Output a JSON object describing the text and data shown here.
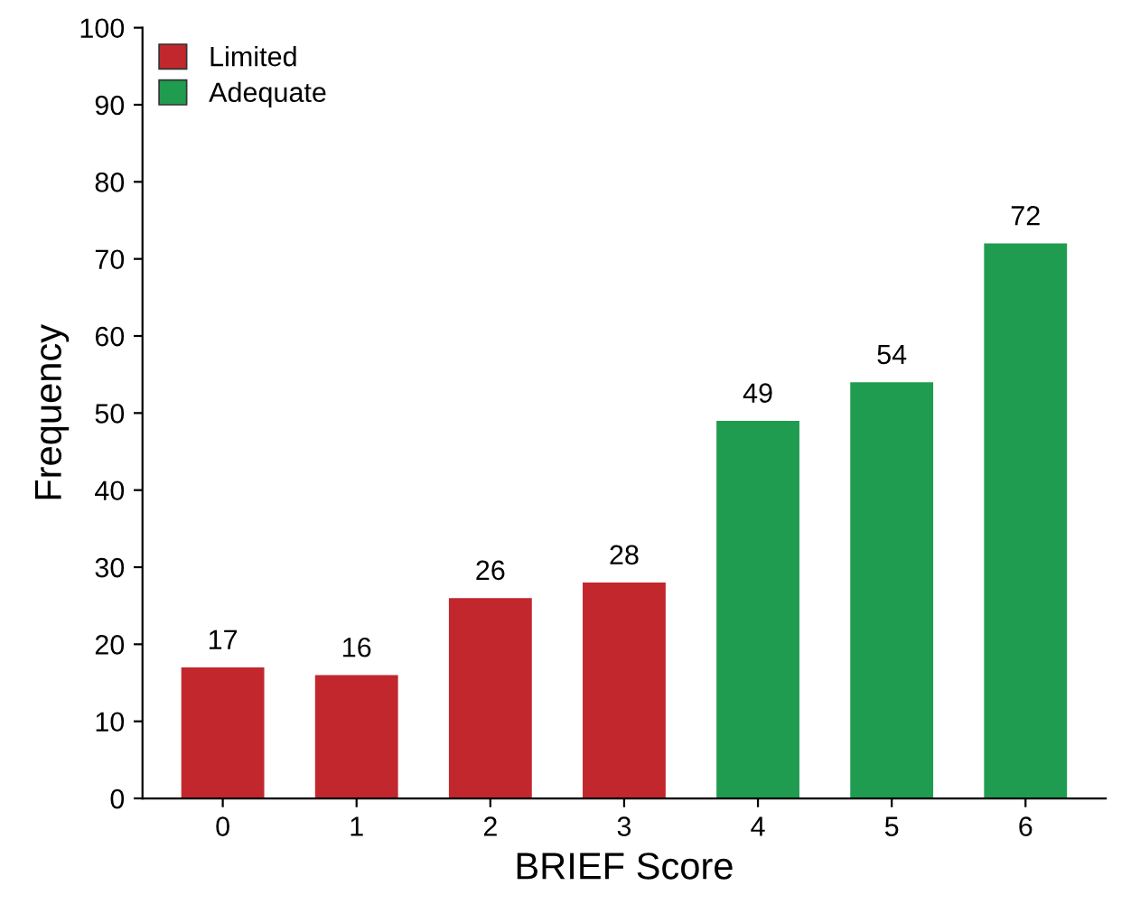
{
  "chart_data": {
    "type": "bar",
    "xlabel": "BRIEF Score",
    "ylabel": "Frequency",
    "categories": [
      "0",
      "1",
      "2",
      "3",
      "4",
      "5",
      "6"
    ],
    "series": [
      {
        "name": "Limited",
        "color": "#c1272d",
        "values": [
          17,
          16,
          26,
          28,
          null,
          null,
          null
        ]
      },
      {
        "name": "Adequate",
        "color": "#1f9c4f",
        "values": [
          null,
          null,
          null,
          null,
          49,
          54,
          72
        ]
      }
    ],
    "ylim": [
      0,
      100
    ],
    "yticks": [
      0,
      10,
      20,
      30,
      40,
      50,
      60,
      70,
      80,
      90,
      100
    ],
    "grid": false,
    "legend": "top left",
    "data_labels": true
  }
}
